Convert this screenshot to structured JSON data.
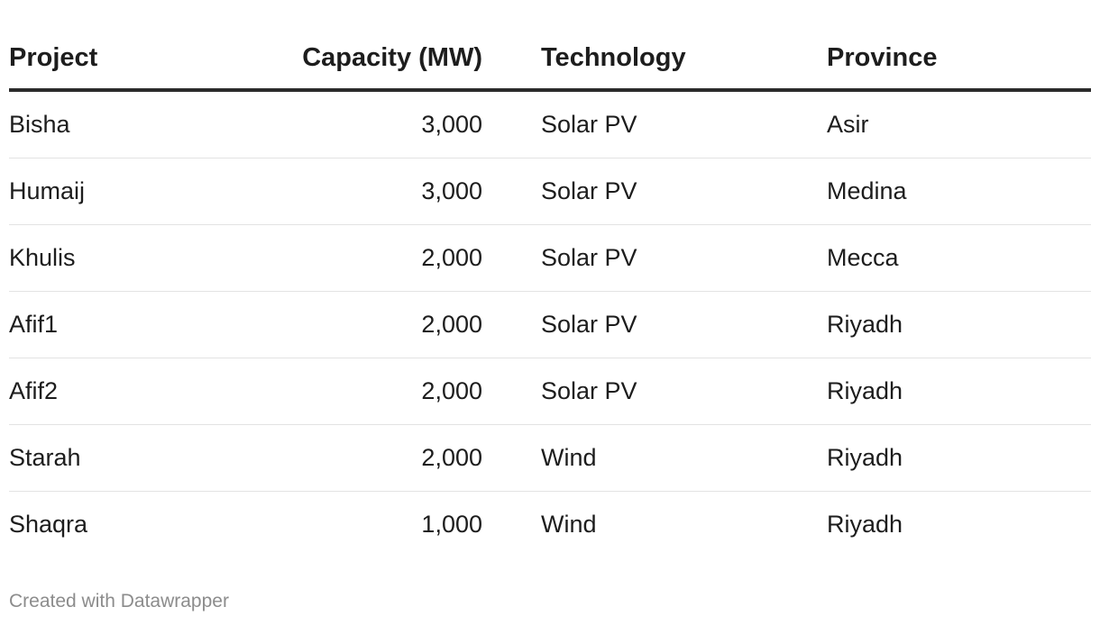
{
  "chart_data": {
    "type": "table",
    "columns": [
      "Project",
      "Capacity (MW)",
      "Technology",
      "Province"
    ],
    "rows": [
      [
        "Bisha",
        "3,000",
        "Solar PV",
        "Asir"
      ],
      [
        "Humaij",
        "3,000",
        "Solar PV",
        "Medina"
      ],
      [
        "Khulis",
        "2,000",
        "Solar PV",
        "Mecca"
      ],
      [
        "Afif1",
        "2,000",
        "Solar PV",
        "Riyadh"
      ],
      [
        "Afif2",
        "2,000",
        "Solar PV",
        "Riyadh"
      ],
      [
        "Starah",
        "2,000",
        "Wind",
        "Riyadh"
      ],
      [
        "Shaqra",
        "1,000",
        "Wind",
        "Riyadh"
      ]
    ]
  },
  "footer": {
    "credit": "Created with Datawrapper"
  },
  "colors": {
    "text": "#1d1d1d",
    "header_rule": "#2b2b2b",
    "row_rule": "#e3e3e3",
    "credit": "#8c8c8c"
  }
}
